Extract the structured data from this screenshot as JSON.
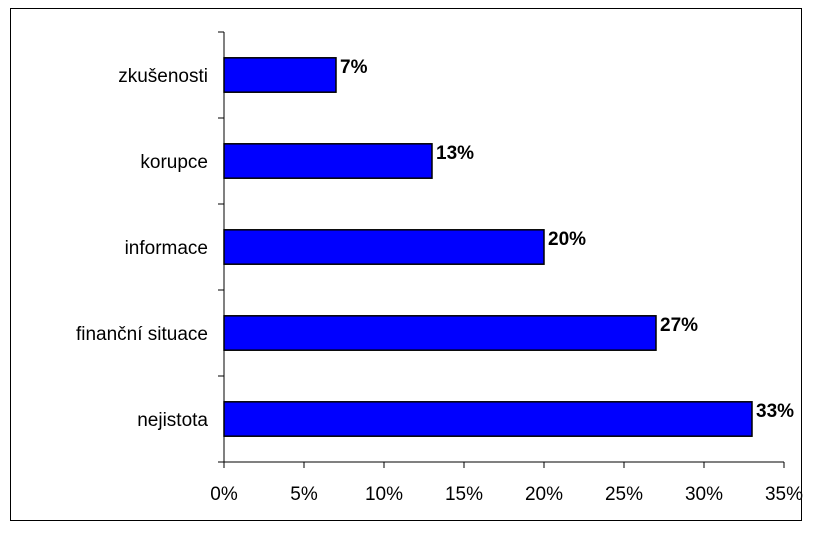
{
  "chart_data": {
    "type": "bar",
    "orientation": "horizontal",
    "categories": [
      "zkušenosti",
      "korupce",
      "informace",
      "finanční situace",
      "nejistota"
    ],
    "values": [
      7,
      13,
      20,
      27,
      33
    ],
    "data_labels": [
      "7%",
      "13%",
      "20%",
      "27%",
      "33%"
    ],
    "xlim": [
      0,
      35
    ],
    "xticks": [
      0,
      5,
      10,
      15,
      20,
      25,
      30,
      35
    ],
    "xtick_labels": [
      "0%",
      "5%",
      "10%",
      "15%",
      "20%",
      "25%",
      "30%",
      "35%"
    ],
    "grid": false,
    "legend": "none",
    "bar_color": "#0000FF",
    "bar_edge_color": "#000000"
  }
}
